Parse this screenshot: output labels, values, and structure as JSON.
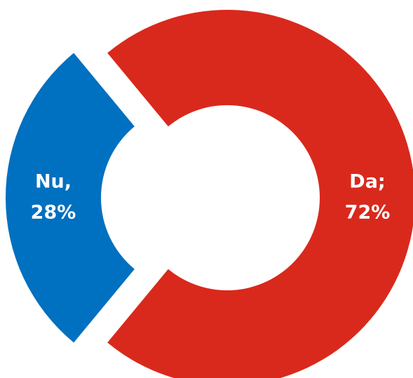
{
  "chart_data": {
    "type": "donut",
    "categories": [
      "Da;",
      "Nu,"
    ],
    "values": [
      72,
      28
    ],
    "value_labels": [
      "72%",
      "28%"
    ],
    "colors": [
      "#d9291c",
      "#0070c0"
    ]
  }
}
